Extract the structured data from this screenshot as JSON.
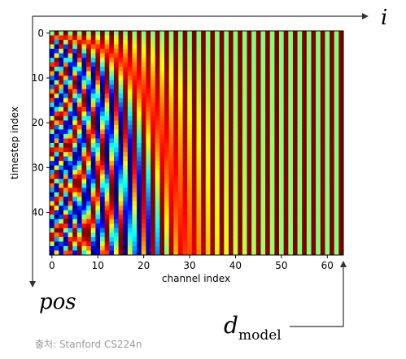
{
  "chart_data": {
    "type": "heatmap",
    "title": "",
    "function": "positional encoding (sinusoidal)",
    "x": {
      "label": "channel index",
      "range": [
        0,
        63
      ],
      "ticks": [
        0,
        10,
        20,
        30,
        40,
        50,
        60
      ],
      "count": 64
    },
    "y": {
      "label": "timestep index",
      "range": [
        0,
        49
      ],
      "ticks": [
        0,
        10,
        20,
        30,
        40
      ],
      "count": 50,
      "inverted": true
    },
    "colormap": "jet",
    "value_range": [
      -1,
      1
    ]
  },
  "annotations": {
    "x_arrow_label": "i",
    "y_arrow_label": "pos",
    "dmodel_main": "d",
    "dmodel_sub": "model"
  },
  "source_text": "출처: Stanford CS224n"
}
